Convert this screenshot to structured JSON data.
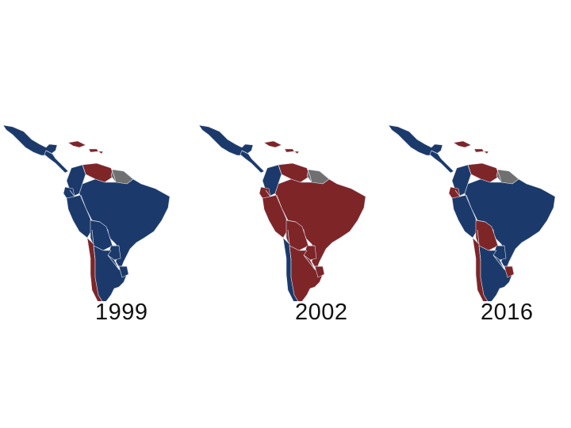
{
  "colors": {
    "blue": "#1b3a6b",
    "red": "#7e2528",
    "gray": "#707070",
    "border": "#d9dce6"
  },
  "maps": [
    {
      "year": "1999",
      "regions": {
        "mexico": "blue",
        "central_america": "blue",
        "caribbean": "red",
        "colombia": "blue",
        "venezuela": "red",
        "guianas": "gray",
        "ecuador": "blue",
        "peru": "blue",
        "brazil": "blue",
        "bolivia": "blue",
        "paraguay": "blue",
        "chile": "red",
        "argentina": "blue",
        "uruguay": "blue"
      }
    },
    {
      "year": "2002",
      "regions": {
        "mexico": "blue",
        "central_america": "blue",
        "caribbean": "red",
        "colombia": "blue",
        "venezuela": "red",
        "guianas": "gray",
        "ecuador": "red",
        "peru": "red",
        "brazil": "red",
        "bolivia": "red",
        "paraguay": "red",
        "chile": "blue",
        "argentina": "red",
        "uruguay": "red"
      }
    },
    {
      "year": "2016",
      "regions": {
        "mexico": "blue",
        "central_america": "blue",
        "caribbean": "red",
        "colombia": "blue",
        "venezuela": "red",
        "guianas": "gray",
        "ecuador": "red",
        "peru": "blue",
        "brazil": "blue",
        "bolivia": "red",
        "paraguay": "blue",
        "chile": "red",
        "argentina": "blue",
        "uruguay": "red"
      }
    }
  ]
}
